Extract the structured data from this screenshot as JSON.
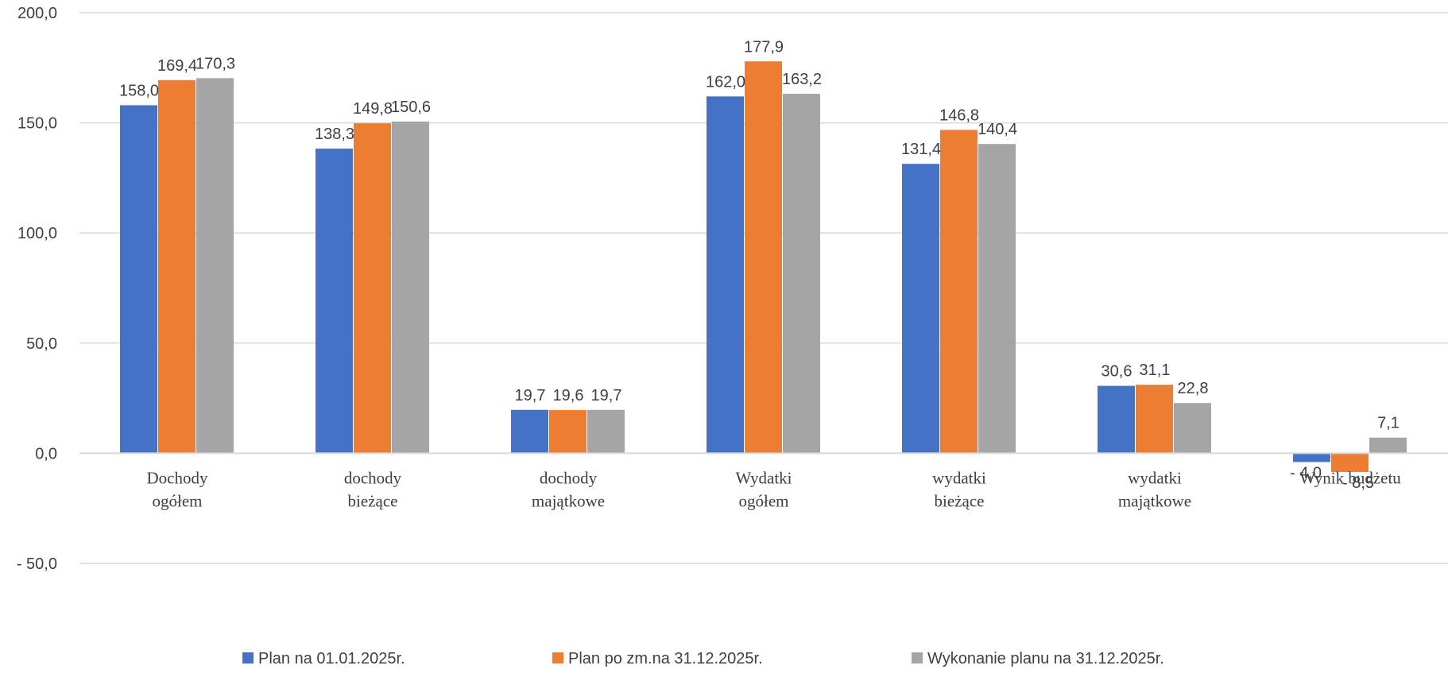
{
  "chart_data": {
    "type": "bar",
    "categories": [
      [
        "Dochody",
        "ogółem"
      ],
      [
        "dochody",
        "bieżące"
      ],
      [
        "dochody",
        "majątkowe"
      ],
      [
        "Wydatki",
        "ogółem"
      ],
      [
        "wydatki",
        "bieżące"
      ],
      [
        "wydatki",
        "majątkowe"
      ],
      [
        "Wynik budżetu"
      ]
    ],
    "series": [
      {
        "name": "Plan na 01.01.2025r.",
        "color": "#4472C4",
        "values": [
          158.0,
          138.3,
          19.7,
          162.0,
          131.4,
          30.6,
          -4.0
        ],
        "labels": [
          "158,0",
          "138,3",
          "19,7",
          "162,0",
          "131,4",
          "30,6",
          "- 4,0"
        ]
      },
      {
        "name": "Plan po zm.na 31.12.2025r.",
        "color": "#ED7D31",
        "values": [
          169.4,
          149.8,
          19.6,
          177.9,
          146.8,
          31.1,
          -8.5
        ],
        "labels": [
          "169,4",
          "149,8",
          "19,6",
          "177,9",
          "146,8",
          "31,1",
          "- 8,5"
        ]
      },
      {
        "name": "Wykonanie planu na 31.12.2025r.",
        "color": "#A5A5A5",
        "values": [
          170.3,
          150.6,
          19.7,
          163.2,
          140.4,
          22.8,
          7.1
        ],
        "labels": [
          "170,3",
          "150,6",
          "19,7",
          "163,2",
          "140,4",
          "22,8",
          "7,1"
        ]
      }
    ],
    "y_ticks": [
      {
        "value": 200,
        "label": "200,0"
      },
      {
        "value": 150,
        "label": "150,0"
      },
      {
        "value": 100,
        "label": "100,0"
      },
      {
        "value": 50,
        "label": "50,0"
      },
      {
        "value": 0,
        "label": "0,0"
      },
      {
        "value": -50,
        "label": "- 50,0"
      }
    ],
    "ylim": [
      -50,
      200
    ],
    "grid": true,
    "legend_position": "bottom"
  }
}
